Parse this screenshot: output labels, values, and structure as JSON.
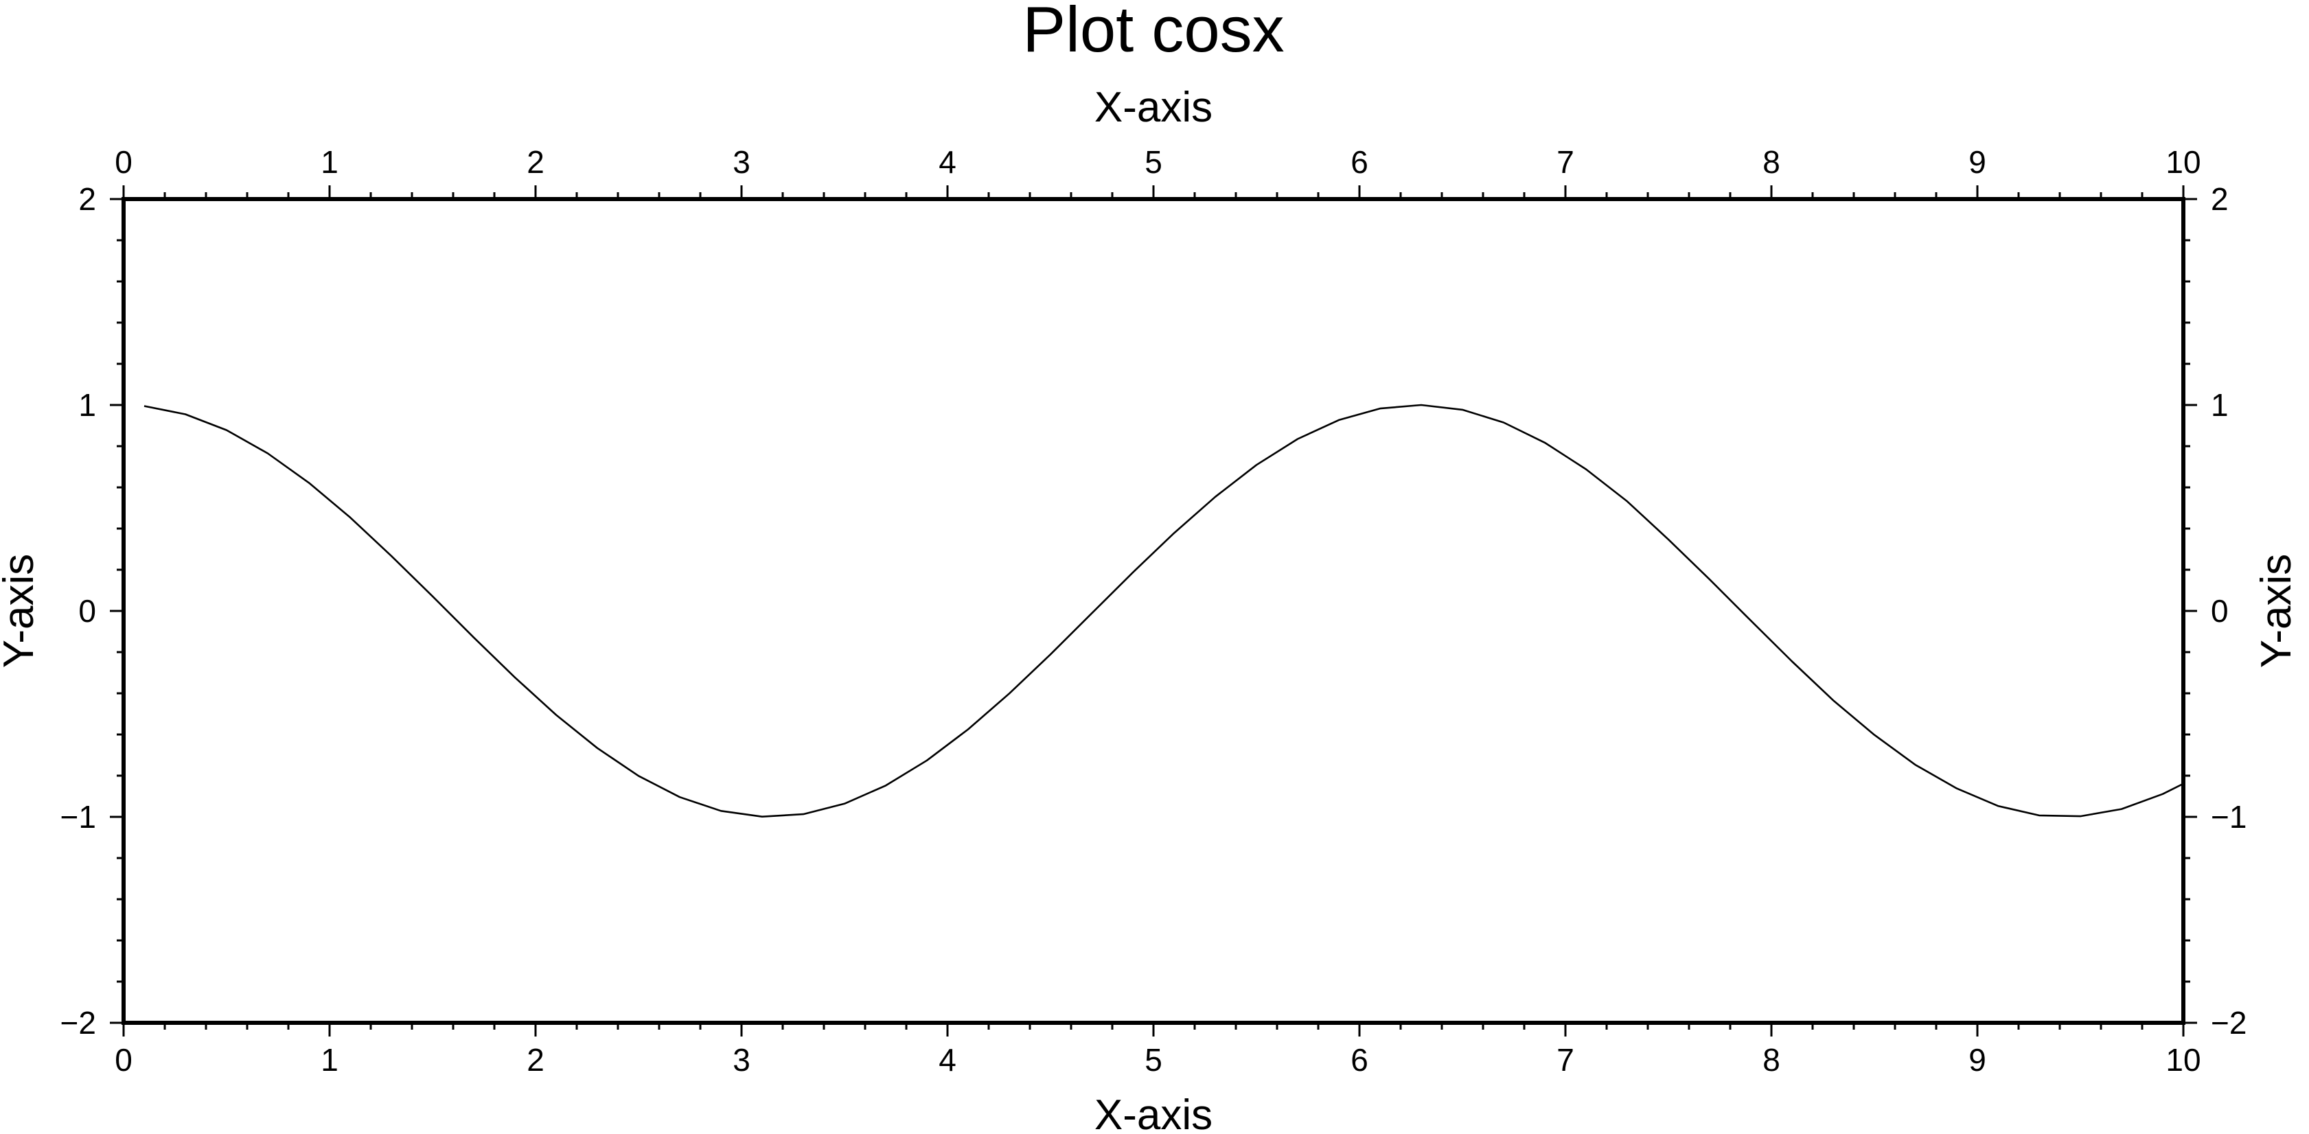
{
  "chart_data": {
    "type": "line",
    "title": "Plot cosx",
    "xlabel": "X-axis",
    "ylabel": "Y-axis",
    "xlabel_top": "X-axis",
    "ylabel_right": "Y-axis",
    "xlim": [
      0,
      10
    ],
    "ylim": [
      -2,
      2
    ],
    "x_ticks": [
      0,
      1,
      2,
      3,
      4,
      5,
      6,
      7,
      8,
      9,
      10
    ],
    "x_tick_labels": [
      "0",
      "1",
      "2",
      "3",
      "4",
      "5",
      "6",
      "7",
      "8",
      "9",
      "10"
    ],
    "y_ticks": [
      -2,
      -1,
      0,
      1,
      2
    ],
    "y_tick_labels": [
      "−2",
      "−1",
      "0",
      "1",
      "2"
    ],
    "x_minor_step": 0.2,
    "y_minor_step": 0.2,
    "grid": false,
    "legend": "none",
    "line_color": "#000000",
    "frame_color": "#000000",
    "series": [
      {
        "x": [
          0.1,
          0.3,
          0.5,
          0.7,
          0.9,
          1.1,
          1.3,
          1.5,
          1.7,
          1.9,
          2.1,
          2.3,
          2.5,
          2.7,
          2.9,
          3.1,
          3.3,
          3.5,
          3.7,
          3.9,
          4.1,
          4.3,
          4.5,
          4.7,
          4.9,
          5.1,
          5.3,
          5.5,
          5.7,
          5.9,
          6.1,
          6.3,
          6.5,
          6.7,
          6.9,
          7.1,
          7.3,
          7.5,
          7.7,
          7.9,
          8.1,
          8.3,
          8.5,
          8.7,
          8.9,
          9.1,
          9.3,
          9.5,
          9.7,
          9.9,
          10.0
        ],
        "y": [
          0.995,
          0.955,
          0.878,
          0.765,
          0.622,
          0.454,
          0.267,
          0.071,
          -0.129,
          -0.323,
          -0.505,
          -0.666,
          -0.801,
          -0.904,
          -0.971,
          -0.999,
          -0.987,
          -0.936,
          -0.848,
          -0.726,
          -0.575,
          -0.401,
          -0.211,
          -0.012,
          0.187,
          0.378,
          0.554,
          0.709,
          0.835,
          0.927,
          0.983,
          1.0,
          0.977,
          0.915,
          0.817,
          0.688,
          0.532,
          0.347,
          0.153,
          -0.047,
          -0.245,
          -0.434,
          -0.602,
          -0.748,
          -0.862,
          -0.947,
          -0.993,
          -0.997,
          -0.962,
          -0.889,
          -0.839
        ]
      }
    ]
  }
}
